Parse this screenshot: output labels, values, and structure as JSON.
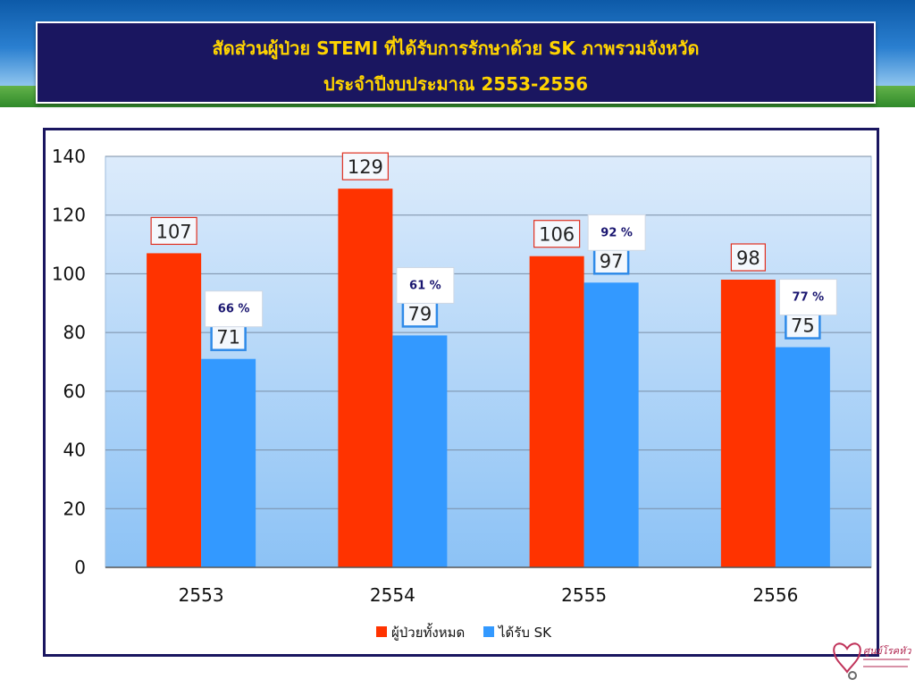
{
  "slide": {
    "title_line1": "สัดส่วนผู้ป่วย STEMI ที่ได้รับการรักษาด้วย SK ภาพรวมจังหวัด",
    "title_line2": "ประจำปีงบประมาณ 2553-2556"
  },
  "colors": {
    "title_bg": "#1a1660",
    "title_text": "#ffd400",
    "series_total": "#ff3300",
    "series_sk": "#3399ff",
    "plot_bg_top": "#dcebfb",
    "plot_bg_bottom": "#8cc2f5"
  },
  "chart_data": {
    "type": "bar",
    "categories": [
      "2553",
      "2554",
      "2555",
      "2556"
    ],
    "series": [
      {
        "name": "ผู้ป่วยทั้งหมด",
        "values": [
          107,
          129,
          106,
          98
        ]
      },
      {
        "name": "ได้รับ SK",
        "values": [
          71,
          79,
          97,
          75
        ]
      }
    ],
    "percent_labels": [
      "66 %",
      "61 %",
      "92 %",
      "77 %"
    ],
    "ylim": [
      0,
      140
    ],
    "yticks": [
      0,
      20,
      40,
      60,
      80,
      100,
      120,
      140
    ],
    "grid": true,
    "legend_position": "bottom"
  },
  "logo": {
    "text_main": "ศูนย์โรคหัวใจ",
    "icon": "heart-stethoscope-icon"
  }
}
